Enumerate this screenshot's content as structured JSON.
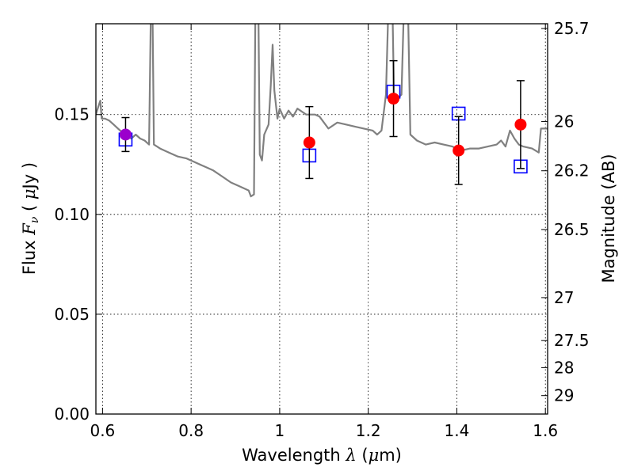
{
  "chart_data": {
    "type": "scatter",
    "xlabel": {
      "prefix": "Wavelength  ",
      "symbol": "λ",
      "unit_open": " (",
      "unit_sym": "μ",
      "unit_rest": "m)"
    },
    "ylabel": {
      "prefix": "Flux  ",
      "symbol": "F",
      "sub": "ν",
      "unit_open": "  ( ",
      "unit_sym": "μ",
      "unit_rest": "Jy )"
    },
    "y2label": "Magnitude (AB)",
    "xlim": [
      0.585,
      1.605
    ],
    "ylim": [
      0.0,
      0.1955
    ],
    "grid": true,
    "x_ticks": [
      {
        "v": 0.6,
        "label": "0.6"
      },
      {
        "v": 0.8,
        "label": "0.8"
      },
      {
        "v": 1.0,
        "label": "1"
      },
      {
        "v": 1.2,
        "label": "1.2"
      },
      {
        "v": 1.4,
        "label": "1.4"
      },
      {
        "v": 1.6,
        "label": "1.6"
      }
    ],
    "y_ticks": [
      {
        "v": 0.0,
        "label": "0.00"
      },
      {
        "v": 0.05,
        "label": "0.05"
      },
      {
        "v": 0.1,
        "label": "0.10"
      },
      {
        "v": 0.15,
        "label": "0.15"
      }
    ],
    "mag_ticks": [
      {
        "mag": 25.7,
        "label": "25.7"
      },
      {
        "mag": 26.0,
        "label": "26"
      },
      {
        "mag": 26.2,
        "label": "26.2"
      },
      {
        "mag": 26.5,
        "label": "26.5"
      },
      {
        "mag": 27.0,
        "label": "27"
      },
      {
        "mag": 27.5,
        "label": "27.5"
      },
      {
        "mag": 28.0,
        "label": "28"
      },
      {
        "mag": 29.0,
        "label": "29"
      }
    ],
    "series": [
      {
        "kind": "line",
        "color": "#808080",
        "points": [
          [
            0.585,
            0.15
          ],
          [
            0.592,
            0.155
          ],
          [
            0.595,
            0.157
          ],
          [
            0.598,
            0.148
          ],
          [
            0.605,
            0.148
          ],
          [
            0.615,
            0.147
          ],
          [
            0.625,
            0.145
          ],
          [
            0.635,
            0.143
          ],
          [
            0.645,
            0.141
          ],
          [
            0.655,
            0.139
          ],
          [
            0.665,
            0.138
          ],
          [
            0.675,
            0.14
          ],
          [
            0.685,
            0.138
          ],
          [
            0.695,
            0.137
          ],
          [
            0.705,
            0.135
          ],
          [
            0.709,
            0.2
          ],
          [
            0.713,
            0.2
          ],
          [
            0.716,
            0.135
          ],
          [
            0.73,
            0.133
          ],
          [
            0.75,
            0.131
          ],
          [
            0.77,
            0.129
          ],
          [
            0.79,
            0.128
          ],
          [
            0.81,
            0.126
          ],
          [
            0.83,
            0.124
          ],
          [
            0.85,
            0.122
          ],
          [
            0.87,
            0.119
          ],
          [
            0.89,
            0.116
          ],
          [
            0.91,
            0.114
          ],
          [
            0.93,
            0.112
          ],
          [
            0.935,
            0.109
          ],
          [
            0.942,
            0.11
          ],
          [
            0.945,
            0.2
          ],
          [
            0.952,
            0.2
          ],
          [
            0.955,
            0.13
          ],
          [
            0.96,
            0.127
          ],
          [
            0.965,
            0.14
          ],
          [
            0.975,
            0.145
          ],
          [
            0.98,
            0.165
          ],
          [
            0.984,
            0.185
          ],
          [
            0.988,
            0.162
          ],
          [
            0.995,
            0.148
          ],
          [
            1.0,
            0.153
          ],
          [
            1.01,
            0.148
          ],
          [
            1.02,
            0.152
          ],
          [
            1.03,
            0.149
          ],
          [
            1.04,
            0.153
          ],
          [
            1.06,
            0.15
          ],
          [
            1.07,
            0.15
          ],
          [
            1.08,
            0.15
          ],
          [
            1.09,
            0.149
          ],
          [
            1.11,
            0.143
          ],
          [
            1.13,
            0.146
          ],
          [
            1.15,
            0.145
          ],
          [
            1.17,
            0.144
          ],
          [
            1.19,
            0.143
          ],
          [
            1.21,
            0.142
          ],
          [
            1.22,
            0.14
          ],
          [
            1.23,
            0.142
          ],
          [
            1.24,
            0.16
          ],
          [
            1.245,
            0.2
          ],
          [
            1.255,
            0.2
          ],
          [
            1.258,
            0.16
          ],
          [
            1.265,
            0.158
          ],
          [
            1.275,
            0.16
          ],
          [
            1.28,
            0.2
          ],
          [
            1.29,
            0.2
          ],
          [
            1.295,
            0.14
          ],
          [
            1.31,
            0.137
          ],
          [
            1.33,
            0.135
          ],
          [
            1.35,
            0.136
          ],
          [
            1.37,
            0.135
          ],
          [
            1.39,
            0.134
          ],
          [
            1.41,
            0.132
          ],
          [
            1.43,
            0.133
          ],
          [
            1.45,
            0.133
          ],
          [
            1.47,
            0.134
          ],
          [
            1.49,
            0.135
          ],
          [
            1.5,
            0.137
          ],
          [
            1.51,
            0.134
          ],
          [
            1.52,
            0.142
          ],
          [
            1.53,
            0.138
          ],
          [
            1.54,
            0.135
          ],
          [
            1.55,
            0.134
          ],
          [
            1.57,
            0.133
          ],
          [
            1.585,
            0.131
          ],
          [
            1.59,
            0.143
          ],
          [
            1.605,
            0.143
          ]
        ]
      },
      {
        "kind": "errorbar",
        "color": "#ff0000",
        "points": [
          {
            "x": 0.652,
            "y": 0.14,
            "err": 0.0085
          },
          {
            "x": 1.067,
            "y": 0.136,
            "err": 0.018
          },
          {
            "x": 1.257,
            "y": 0.158,
            "err": 0.019
          },
          {
            "x": 1.404,
            "y": 0.132,
            "err": 0.017
          },
          {
            "x": 1.544,
            "y": 0.145,
            "err": 0.022
          }
        ]
      },
      {
        "kind": "open-square",
        "color": "#0000ff",
        "points": [
          {
            "x": 0.652,
            "y": 0.1375
          },
          {
            "x": 1.067,
            "y": 0.1295
          },
          {
            "x": 1.257,
            "y": 0.1615
          },
          {
            "x": 1.404,
            "y": 0.1505
          },
          {
            "x": 1.544,
            "y": 0.124
          }
        ]
      }
    ],
    "marker_colors": {
      "overlap": "#9b00cc"
    }
  }
}
